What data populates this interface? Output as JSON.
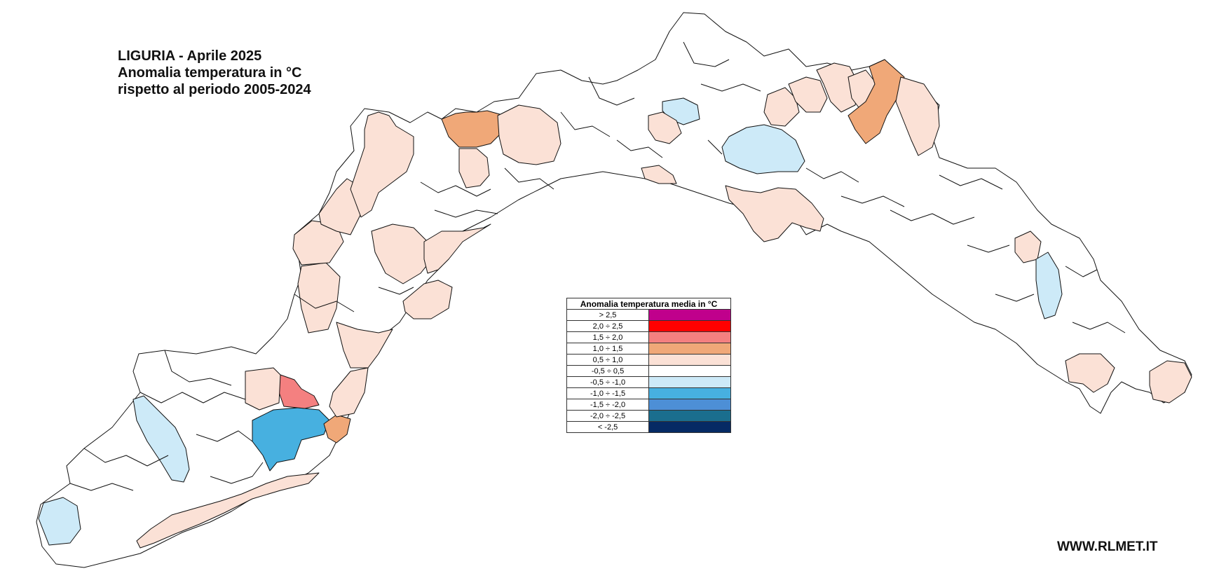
{
  "title": {
    "line1": "LIGURIA - Aprile 2025",
    "line2": "Anomalia temperatura in °C",
    "line3": "rispetto al periodo 2005-2024"
  },
  "website": "WWW.RLMET.IT",
  "legend": {
    "header": "Anomalia temperatura media in °C",
    "classes": [
      {
        "label": "> 2,5",
        "color": "#c0008c"
      },
      {
        "label": "2,0 ÷ 2,5",
        "color": "#ff0000"
      },
      {
        "label": "1,5 ÷ 2,0",
        "color": "#f48080"
      },
      {
        "label": "1,0 ÷ 1,5",
        "color": "#f0a878"
      },
      {
        "label": "0,5 ÷ 1,0",
        "color": "#fbe1d6"
      },
      {
        "label": "-0,5 ÷ 0,5",
        "color": "#ffffff"
      },
      {
        "label": "-0,5 ÷ -1,0",
        "color": "#cdeaf8"
      },
      {
        "label": "-1,0 ÷ -1,5",
        "color": "#47b0e0"
      },
      {
        "label": "-1,5 ÷ -2,0",
        "color": "#4d8fd6"
      },
      {
        "label": "-2,0 ÷ -2,5",
        "color": "#1a6e8e"
      },
      {
        "label": "< -2,5",
        "color": "#062a64"
      }
    ]
  }
}
